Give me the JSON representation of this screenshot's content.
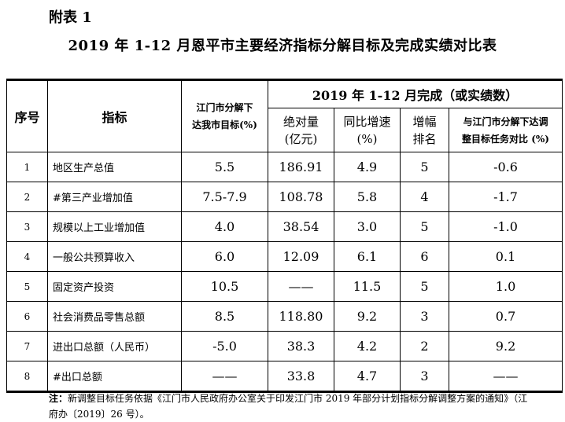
{
  "appendix_label": "附表 1",
  "title": "2019 年 1-12 月恩平市主要经济指标分解目标及完成实绩对比表",
  "headers": {
    "seq": "序号",
    "indicator": "指标",
    "target_line1": "江门市分解下",
    "target_line2": "达我市目标(%)",
    "completed_group": "2019 年 1-12 月完成（或实绩数）",
    "absolute_line1": "绝对量",
    "absolute_line2": "(亿元)",
    "growth_line1": "同比增速",
    "growth_line2": "(%)",
    "rank_line1": "增幅",
    "rank_line2": "排名",
    "compare_line1": "与江门市分解下达调",
    "compare_line2": "整目标任务对比 (%)"
  },
  "rows": [
    {
      "seq": "1",
      "indicator": "地区生产总值",
      "target": "5.5",
      "absolute": "186.91",
      "growth": "4.9",
      "rank": "5",
      "compare": "-0.6"
    },
    {
      "seq": "2",
      "indicator": "#第三产业增加值",
      "target": "7.5-7.9",
      "absolute": "108.78",
      "growth": "5.8",
      "rank": "4",
      "compare": "-1.7"
    },
    {
      "seq": "3",
      "indicator": "规模以上工业增加值",
      "target": "4.0",
      "absolute": "38.54",
      "growth": "3.0",
      "rank": "5",
      "compare": "-1.0"
    },
    {
      "seq": "4",
      "indicator": "一般公共预算收入",
      "target": "6.0",
      "absolute": "12.09",
      "growth": "6.1",
      "rank": "6",
      "compare": "0.1"
    },
    {
      "seq": "5",
      "indicator": "固定资产投资",
      "target": "10.5",
      "absolute": "——",
      "growth": "11.5",
      "rank": "5",
      "compare": "1.0"
    },
    {
      "seq": "6",
      "indicator": "社会消费品零售总额",
      "target": "8.5",
      "absolute": "118.80",
      "growth": "9.2",
      "rank": "3",
      "compare": "0.7"
    },
    {
      "seq": "7",
      "indicator": "进出口总额（人民币）",
      "target": "-5.0",
      "absolute": "38.3",
      "growth": "4.2",
      "rank": "2",
      "compare": "9.2"
    },
    {
      "seq": "8",
      "indicator": "#出口总额",
      "target": "——",
      "absolute": "33.8",
      "growth": "4.7",
      "rank": "3",
      "compare": "——"
    }
  ],
  "note": {
    "label": "注：",
    "text": "新调整目标任务依据《江门市人民政府办公室关于印发江门市 2019 年部分计划指标分解调整方案的通知》（江府办〔2019〕26 号）。"
  }
}
